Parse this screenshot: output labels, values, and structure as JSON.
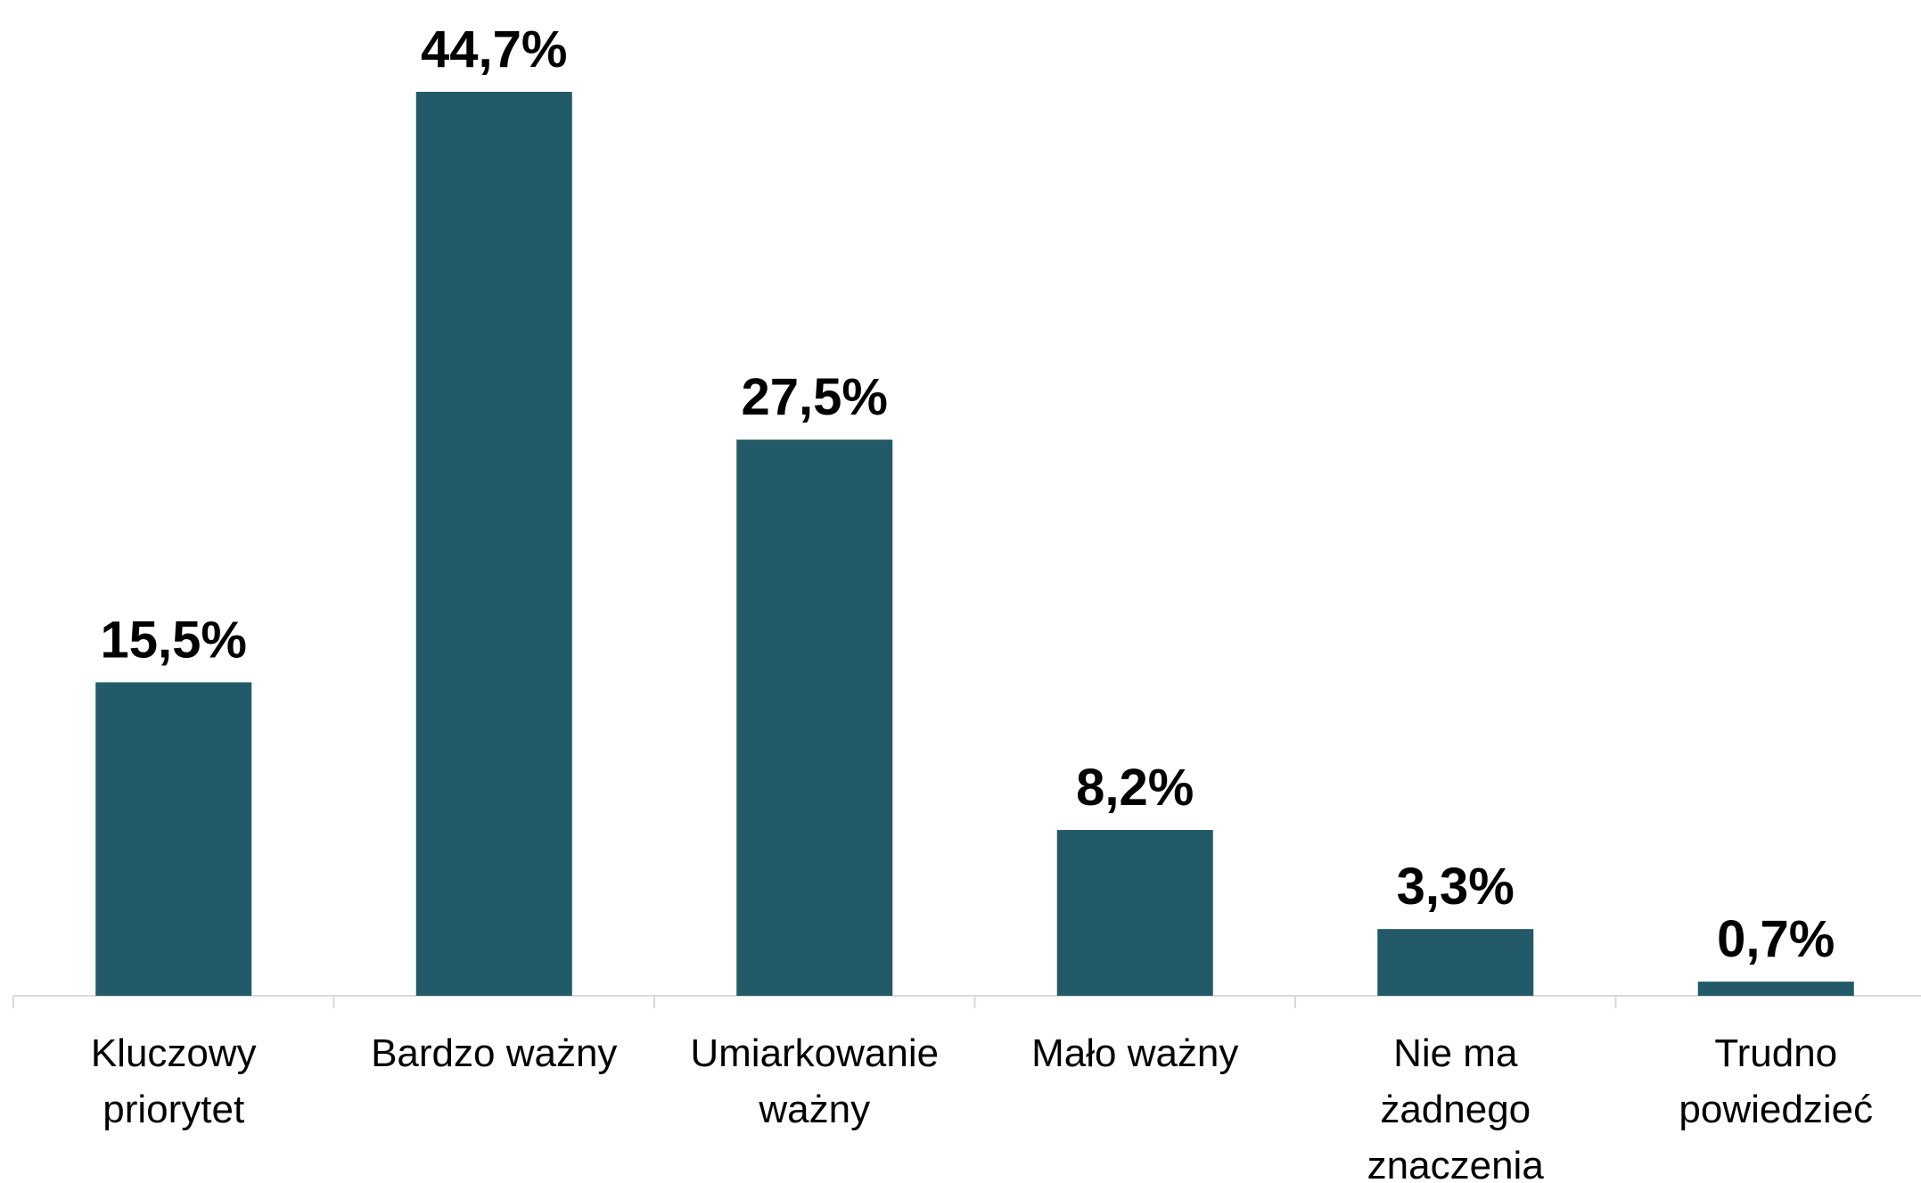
{
  "chart_data": {
    "type": "bar",
    "categories": [
      "Kluczowy\npriorytet",
      "Bardzo ważny",
      "Umiarkowanie\nważny",
      "Mało ważny",
      "Nie ma\nżadnego\nznaczenia",
      "Trudno\npowiedzieć"
    ],
    "values": [
      15.5,
      44.7,
      27.5,
      8.2,
      3.3,
      0.7
    ],
    "value_labels": [
      "15,5%",
      "44,7%",
      "27,5%",
      "8,2%",
      "3,3%",
      "0,7%"
    ],
    "color": "#235a69"
  }
}
